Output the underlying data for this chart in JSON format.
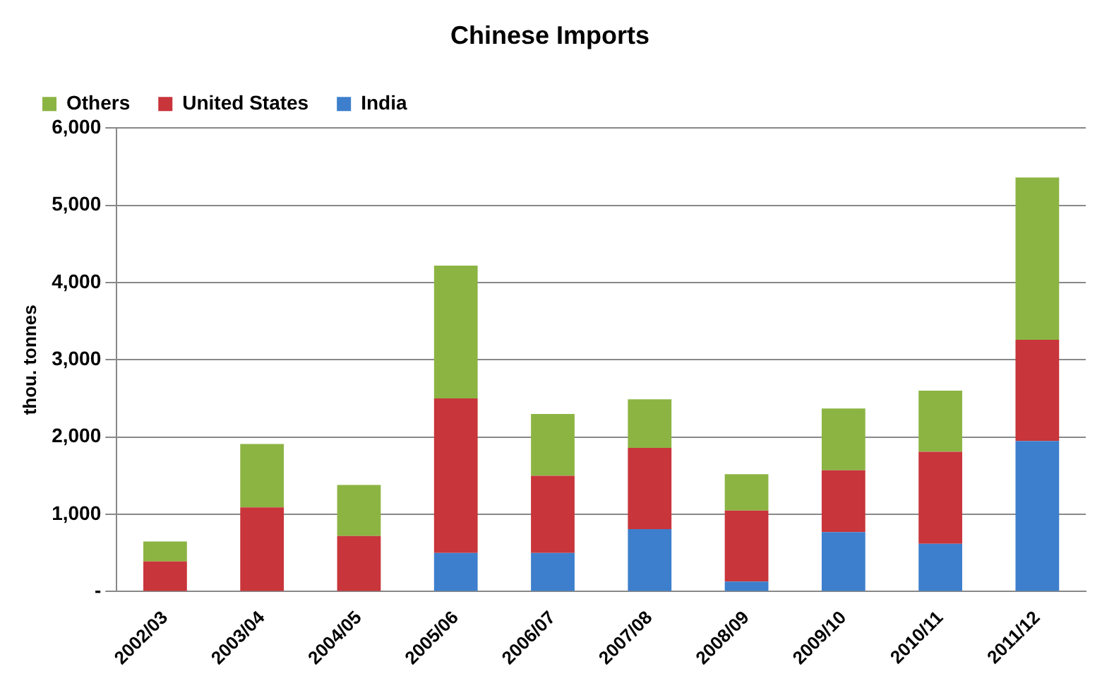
{
  "chart_data": {
    "type": "bar",
    "title": "Chinese Imports",
    "ylabel": "thou. tonnes",
    "categories": [
      "2002/03",
      "2003/04",
      "2004/05",
      "2005/06",
      "2006/07",
      "2007/08",
      "2008/09",
      "2009/10",
      "2010/11",
      "2011/12"
    ],
    "stacked": true,
    "series": [
      {
        "name": "India",
        "color": "#3d7fcc",
        "values": [
          0,
          0,
          0,
          500,
          500,
          810,
          130,
          770,
          620,
          1950
        ]
      },
      {
        "name": "United States",
        "color": "#c8353a",
        "values": [
          390,
          1090,
          720,
          2000,
          1000,
          1050,
          920,
          800,
          1190,
          1310
        ]
      },
      {
        "name": "Others",
        "color": "#8cb443",
        "values": [
          260,
          820,
          660,
          1720,
          800,
          630,
          470,
          800,
          790,
          2100
        ]
      }
    ],
    "ylim": [
      0,
      6000
    ],
    "yticks": [
      {
        "value": 0,
        "label": "-"
      },
      {
        "value": 1000,
        "label": "1,000"
      },
      {
        "value": 2000,
        "label": "2,000"
      },
      {
        "value": 3000,
        "label": "3,000"
      },
      {
        "value": 4000,
        "label": "4,000"
      },
      {
        "value": 5000,
        "label": "5,000"
      },
      {
        "value": 6000,
        "label": "6,000"
      }
    ],
    "grid": "y",
    "legend": "top left"
  }
}
